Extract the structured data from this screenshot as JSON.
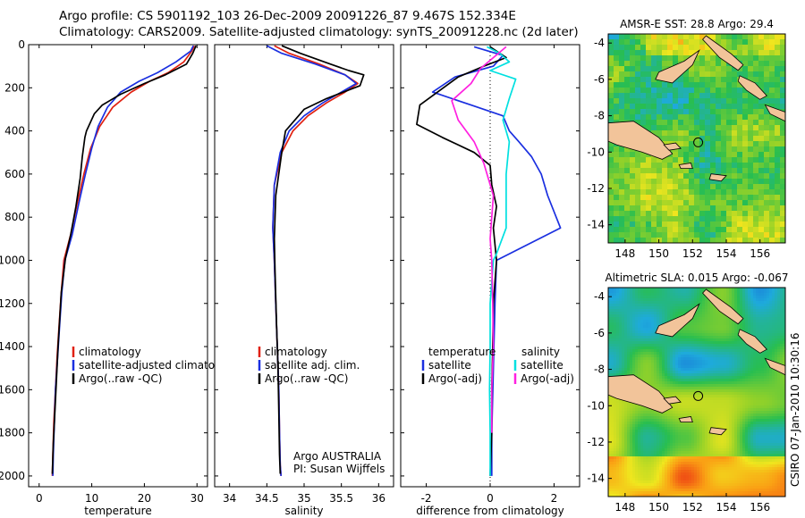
{
  "header": {
    "line1": "Argo profile: CS 5901192_103 26-Dec-2009 20091226_87 9.467S 152.334E",
    "line2": "Climatology: CARS2009. Satellite-adjusted climatology: synTS_20091228.nc (2d later)"
  },
  "side_label": "CSIRO 07-Jan-2010 10:30:16",
  "colors": {
    "climatology": "#e02010",
    "satellite": "#1a2fe0",
    "argo": "#000000",
    "salinity_satellite": "#00e0e0",
    "salinity_argo": "#ff20e0",
    "land": "#f2c49a"
  },
  "chart_data": [
    {
      "type": "line",
      "xlabel": "temperature",
      "xlim": [
        -2,
        32
      ],
      "ylim": [
        0,
        2050
      ],
      "y_inverted": true,
      "xticks": [
        "0",
        "10",
        "20",
        "30"
      ],
      "xtick_values": [
        0,
        10,
        20,
        30
      ],
      "yticks": [
        "0",
        "200",
        "400",
        "600",
        "800",
        "1000",
        "1200",
        "1400",
        "1600",
        "1800",
        "2000"
      ],
      "ytick_values": [
        0,
        200,
        400,
        600,
        800,
        1000,
        1200,
        1400,
        1600,
        1800,
        2000
      ],
      "legend": [
        "climatology",
        "satellite-adjusted climatology",
        "Argo(..raw -QC)"
      ],
      "series": [
        {
          "name": "climatology",
          "color": "#e02010",
          "x": [
            29.5,
            29.0,
            27.5,
            24.5,
            21.0,
            17.5,
            14.0,
            11.5,
            9.8,
            8.5,
            7.2,
            6.0,
            4.7,
            4.2,
            3.8,
            3.4,
            3.1,
            2.8,
            2.6,
            2.5
          ],
          "y": [
            5,
            30,
            80,
            130,
            170,
            220,
            290,
            380,
            480,
            600,
            740,
            880,
            1000,
            1150,
            1300,
            1450,
            1600,
            1750,
            1900,
            2000
          ]
        },
        {
          "name": "satellite-adjusted climatology",
          "color": "#1a2fe0",
          "x": [
            29.3,
            28.8,
            26.0,
            22.5,
            19.0,
            15.5,
            13.0,
            11.2,
            10.0,
            8.8,
            7.5,
            6.3,
            4.9,
            4.3,
            3.9,
            3.5,
            3.1,
            2.9,
            2.7,
            2.6
          ],
          "y": [
            5,
            30,
            80,
            130,
            170,
            220,
            290,
            380,
            480,
            600,
            740,
            880,
            1000,
            1150,
            1300,
            1450,
            1600,
            1750,
            1900,
            2000
          ]
        },
        {
          "name": "Argo(..raw -QC)",
          "color": "#000000",
          "x": [
            29.8,
            29.2,
            28.0,
            24.0,
            20.0,
            15.5,
            12.0,
            10.5,
            9.0,
            8.7,
            8.2,
            7.8,
            7.0,
            6.0,
            5.0,
            4.2,
            3.6,
            3.1,
            2.7,
            2.5
          ],
          "y": [
            5,
            40,
            90,
            140,
            180,
            230,
            280,
            320,
            400,
            430,
            520,
            620,
            750,
            880,
            990,
            1150,
            1400,
            1650,
            1850,
            1990
          ]
        }
      ]
    },
    {
      "type": "line",
      "xlabel": "salinity",
      "xlim": [
        33.8,
        36.2
      ],
      "ylim": [
        0,
        2050
      ],
      "y_inverted": true,
      "xticks": [
        "34",
        "34.5",
        "35",
        "35.5",
        "36"
      ],
      "xtick_values": [
        34,
        34.5,
        35,
        35.5,
        36
      ],
      "legend": [
        "climatology",
        "satellite adj. clim.",
        "Argo(..raw -QC)"
      ],
      "annotation": [
        "Argo AUSTRALIA",
        "PI: Susan Wijffels"
      ],
      "series": [
        {
          "name": "climatology",
          "color": "#e02010",
          "x": [
            34.6,
            34.8,
            35.2,
            35.55,
            35.72,
            35.55,
            35.3,
            35.05,
            34.85,
            34.7,
            34.6,
            34.58,
            34.6,
            34.62,
            34.64,
            34.66,
            34.67,
            34.68,
            34.69
          ],
          "y": [
            5,
            40,
            90,
            140,
            180,
            220,
            270,
            330,
            400,
            500,
            650,
            850,
            1000,
            1200,
            1400,
            1600,
            1800,
            1950,
            2000
          ]
        },
        {
          "name": "satellite adj. clim.",
          "color": "#1a2fe0",
          "x": [
            34.5,
            34.7,
            35.15,
            35.55,
            35.7,
            35.5,
            35.25,
            35.0,
            34.8,
            34.68,
            34.6,
            34.58,
            34.6,
            34.62,
            34.64,
            34.66,
            34.67,
            34.68,
            34.69
          ],
          "y": [
            5,
            40,
            90,
            140,
            180,
            220,
            270,
            330,
            400,
            500,
            650,
            850,
            1000,
            1200,
            1400,
            1600,
            1800,
            1950,
            2000
          ]
        },
        {
          "name": "Argo(..raw -QC)",
          "color": "#000000",
          "x": [
            34.7,
            34.95,
            35.35,
            35.6,
            35.8,
            35.75,
            35.3,
            35.0,
            34.9,
            34.75,
            34.7,
            34.62,
            34.6,
            34.61,
            34.63,
            34.65,
            34.66,
            34.67,
            34.68
          ],
          "y": [
            5,
            40,
            90,
            120,
            140,
            190,
            250,
            300,
            340,
            400,
            500,
            700,
            900,
            1050,
            1300,
            1500,
            1700,
            1900,
            1990
          ]
        }
      ]
    },
    {
      "type": "line",
      "xlabel": "difference from climatology",
      "xlim": [
        -2.8,
        2.8
      ],
      "ylim": [
        0,
        2050
      ],
      "y_inverted": true,
      "zero_line": "dotted",
      "xticks": [
        "-2",
        "0",
        "2"
      ],
      "xtick_values": [
        -2,
        0,
        2
      ],
      "legend_left_title": "temperature",
      "legend_right_title": "salinity",
      "legend_left": [
        "satellite",
        "Argo(-adj)"
      ],
      "legend_right": [
        "satellite",
        "Argo(-adj)"
      ],
      "series": [
        {
          "name": "temperature satellite",
          "color": "#1a2fe0",
          "x": [
            -0.5,
            0.4,
            0.1,
            -1.1,
            -1.8,
            -0.6,
            0.4,
            0.6,
            0.9,
            1.3,
            1.6,
            1.8,
            2.2,
            0.2,
            0.15,
            0.1,
            0.05,
            0.05
          ],
          "y": [
            10,
            50,
            100,
            150,
            220,
            280,
            330,
            400,
            450,
            520,
            600,
            700,
            850,
            1000,
            1200,
            1500,
            1800,
            2000
          ]
        },
        {
          "name": "temperature Argo(-adj)",
          "color": "#000000",
          "x": [
            0.0,
            0.5,
            -0.2,
            -1.0,
            -2.2,
            -2.3,
            -1.5,
            -0.5,
            0.0,
            0.05,
            0.2,
            0.1,
            0.2,
            0.1,
            0.08,
            0.05,
            0.05,
            0.0
          ],
          "y": [
            10,
            60,
            100,
            150,
            280,
            370,
            430,
            500,
            560,
            650,
            750,
            850,
            1000,
            1200,
            1400,
            1600,
            1800,
            2000
          ]
        },
        {
          "name": "salinity satellite",
          "color": "#00e0e0",
          "x": [
            -0.1,
            0.3,
            0.6,
            0.0,
            0.8,
            0.6,
            0.4,
            0.6,
            0.5,
            0.5,
            0.2,
            0.1,
            0.0,
            0.0,
            -0.02,
            0.0,
            0.0
          ],
          "y": [
            10,
            40,
            80,
            120,
            160,
            250,
            350,
            450,
            600,
            850,
            970,
            1000,
            1200,
            1400,
            1600,
            1800,
            2000
          ]
        },
        {
          "name": "salinity Argo(-adj)",
          "color": "#ff20e0",
          "x": [
            0.5,
            0.1,
            -0.3,
            -0.6,
            -1.2,
            -1.0,
            -0.5,
            -0.2,
            0.1,
            0.0,
            0.05,
            0.08,
            0.1,
            0.05,
            0.05
          ],
          "y": [
            10,
            60,
            110,
            180,
            260,
            350,
            450,
            550,
            700,
            900,
            1000,
            1200,
            1400,
            1600,
            1800
          ]
        }
      ]
    },
    {
      "type": "heatmap",
      "title": "AMSR-E SST: 28.8 Argo: 29.4",
      "xlim": [
        147,
        157.5
      ],
      "ylim": [
        -15,
        -3.5
      ],
      "xticks": [
        "148",
        "150",
        "152",
        "154",
        "156"
      ],
      "xtick_values": [
        148,
        150,
        152,
        154,
        156
      ],
      "yticks": [
        "-4",
        "-6",
        "-8",
        "-10",
        "-12",
        "-14"
      ],
      "ytick_values": [
        -4,
        -6,
        -8,
        -10,
        -12,
        -14
      ],
      "argo_position": [
        152.334,
        -9.467
      ]
    },
    {
      "type": "heatmap",
      "title": "Altimetric SLA: 0.015 Argo: -0.067",
      "xlim": [
        147,
        157.5
      ],
      "ylim": [
        -15,
        -3.5
      ],
      "xticks": [
        "148",
        "150",
        "152",
        "154",
        "156"
      ],
      "xtick_values": [
        148,
        150,
        152,
        154,
        156
      ],
      "yticks": [
        "-4",
        "-6",
        "-8",
        "-10",
        "-12",
        "-14"
      ],
      "ytick_values": [
        -4,
        -6,
        -8,
        -10,
        -12,
        -14
      ],
      "argo_position": [
        152.334,
        -9.467
      ]
    }
  ]
}
